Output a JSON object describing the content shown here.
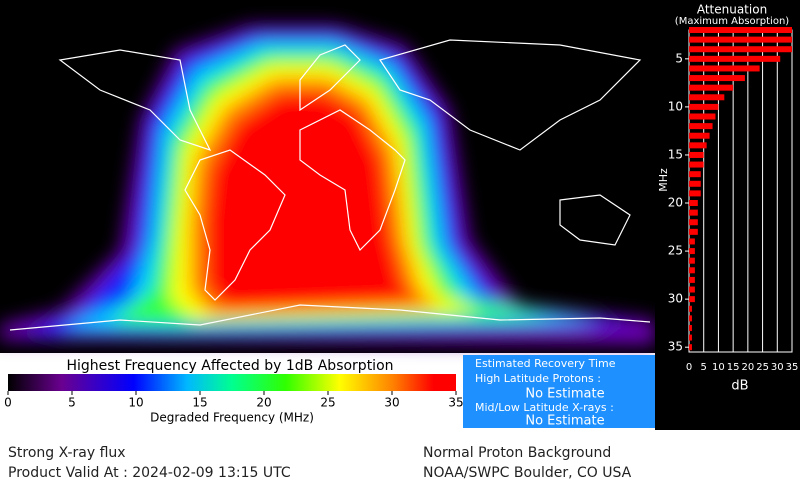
{
  "chart_data": {
    "type": "bar",
    "orientation": "horizontal",
    "title": "Attenuation",
    "subtitle": "(Maximum Absorption)",
    "y_label": "MHz",
    "x_label": "dB",
    "x": [
      2,
      3,
      4,
      5,
      6,
      7,
      8,
      9,
      10,
      11,
      12,
      13,
      14,
      15,
      16,
      17,
      18,
      19,
      20,
      21,
      22,
      23,
      24,
      25,
      26,
      27,
      28,
      29,
      30,
      31,
      32,
      33,
      34,
      35
    ],
    "values": [
      35,
      35,
      35,
      31,
      24,
      19,
      15,
      12,
      10,
      9,
      8,
      7,
      6,
      5,
      5,
      4,
      4,
      4,
      3,
      3,
      3,
      3,
      2,
      2,
      2,
      2,
      2,
      2,
      2,
      1,
      1,
      1,
      1,
      1
    ],
    "color": "#ff0000",
    "xlim": [
      2,
      35.5
    ],
    "xticks": [
      5,
      10,
      15,
      20,
      25,
      30,
      35
    ],
    "ylim": [
      0,
      35
    ],
    "yticks": [
      0,
      5,
      10,
      15,
      20,
      25,
      30,
      35
    ],
    "grid": true
  },
  "colorbar": {
    "title": "Highest Frequency Affected by 1dB Absorption",
    "label": "Degraded Frequency (MHz)",
    "lim": [
      0,
      35
    ],
    "ticks": [
      0,
      5,
      10,
      15,
      20,
      25,
      30,
      35
    ]
  },
  "recovery": {
    "title": "Estimated Recovery Time",
    "protons_label": "High Latitude Protons :",
    "protons_value": "No Estimate",
    "xrays_label": "Mid/Low Latitude X-rays :",
    "xrays_value": "No Estimate"
  },
  "footer": {
    "left_1": "Strong X-ray flux",
    "left_2": "Product Valid At : 2024-02-09 13:15 UTC",
    "right_1": "Normal Proton Background",
    "right_2": "NOAA/SWPC Boulder, CO USA"
  }
}
